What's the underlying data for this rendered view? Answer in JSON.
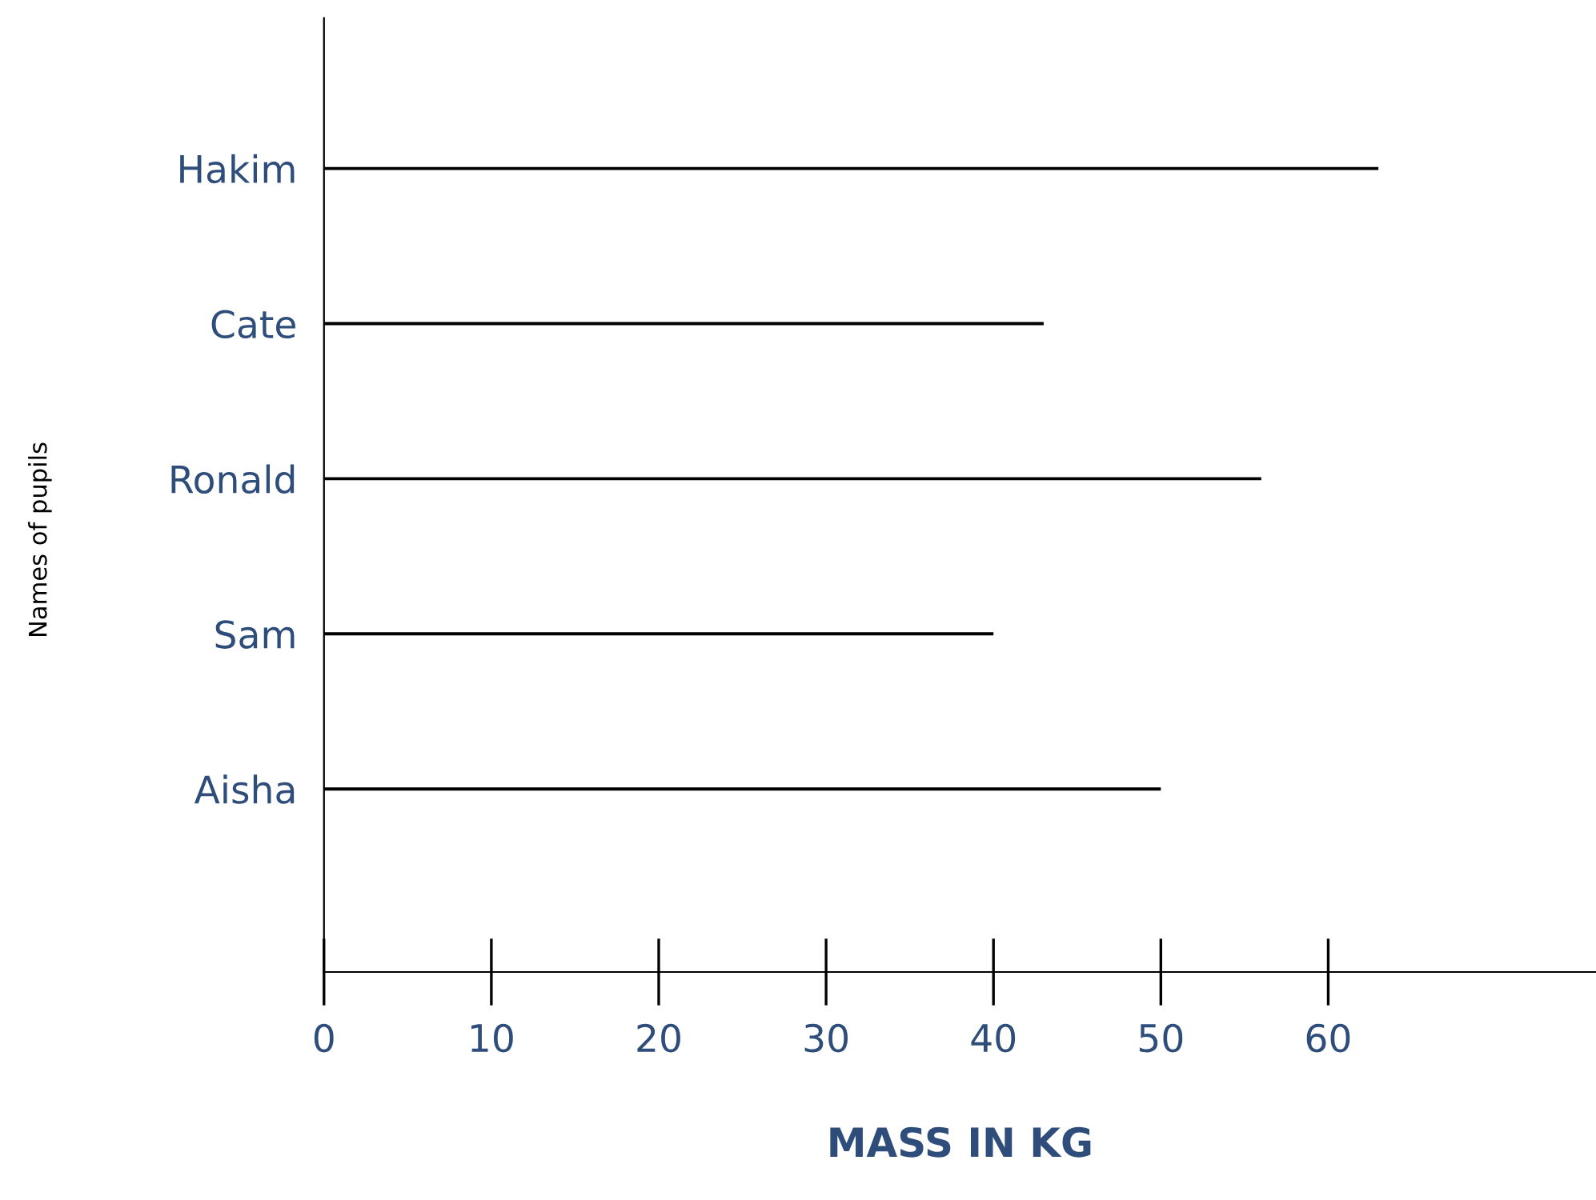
{
  "chart_data": {
    "type": "bar",
    "orientation": "horizontal",
    "xlabel": "MASS IN KG",
    "ylabel": "Names of pupils",
    "categories": [
      "Hakim",
      "Cate",
      "Ronald",
      "Sam",
      "Aisha"
    ],
    "values": [
      63,
      43,
      56,
      40,
      50
    ],
    "color": "#000000",
    "xlim": [
      0,
      76
    ],
    "xticks": [
      0,
      10,
      20,
      30,
      40,
      50,
      60
    ],
    "grid": false,
    "legend": false
  }
}
